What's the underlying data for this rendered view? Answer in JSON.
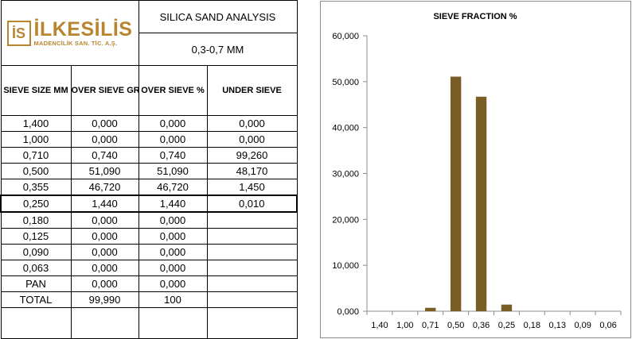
{
  "company": {
    "logo_mark": "İS",
    "name": "İLKESİLİS",
    "subtitle": "MADENCİLİK SAN. TİC. A.Ş."
  },
  "analysis": {
    "title": "SILICA SAND ANALYSIS",
    "size_range": "0,3-0,7 MM"
  },
  "table": {
    "headers": [
      "SIEVE SIZE MM",
      "OVER SIEVE GR.",
      "OVER SIEVE %",
      "UNDER SIEVE"
    ],
    "rows": [
      [
        "1,400",
        "0,000",
        "0,000",
        "0,000"
      ],
      [
        "1,000",
        "0,000",
        "0,000",
        "0,000"
      ],
      [
        "0,710",
        "0,740",
        "0,740",
        "99,260"
      ],
      [
        "0,500",
        "51,090",
        "51,090",
        "48,170"
      ],
      [
        "0,355",
        "46,720",
        "46,720",
        "1,450"
      ],
      [
        "0,250",
        "1,440",
        "1,440",
        "0,010"
      ],
      [
        "0,180",
        "0,000",
        "0,000",
        ""
      ],
      [
        "0,125",
        "0,000",
        "0,000",
        ""
      ],
      [
        "0,090",
        "0,000",
        "0,000",
        ""
      ],
      [
        "0,063",
        "0,000",
        "0,000",
        ""
      ],
      [
        "PAN",
        "0,000",
        "0,000",
        ""
      ],
      [
        "TOTAL",
        "99,990",
        "100",
        ""
      ]
    ]
  },
  "chart_data": {
    "type": "bar",
    "title": "SIEVE FRACTION %",
    "xlabel": "",
    "ylabel": "",
    "categories": [
      "1,40",
      "1,00",
      "0,71",
      "0,50",
      "0,36",
      "0,25",
      "0,18",
      "0,13",
      "0,09",
      "0,06"
    ],
    "values": [
      0,
      0,
      0.74,
      51.09,
      46.72,
      1.44,
      0,
      0,
      0,
      0
    ],
    "ylim": [
      0,
      60
    ],
    "yticks": [
      0,
      10,
      20,
      30,
      40,
      50,
      60
    ],
    "ytick_labels": [
      "0,000",
      "10,000",
      "20,000",
      "30,000",
      "40,000",
      "50,000",
      "60,000"
    ],
    "grid": false,
    "legend": "none",
    "bar_color": "#7a5d25",
    "axis_color": "#8c8c8c"
  }
}
